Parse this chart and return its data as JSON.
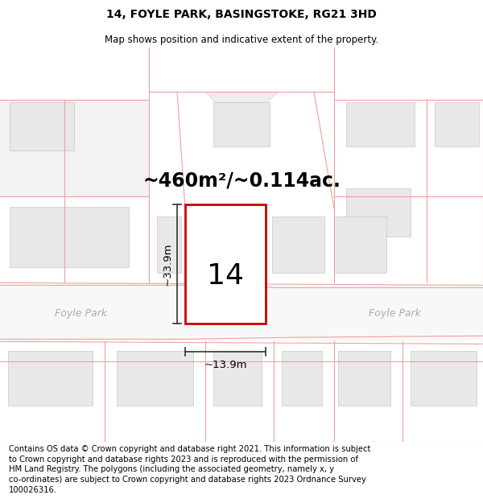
{
  "title": "14, FOYLE PARK, BASINGSTOKE, RG21 3HD",
  "subtitle": "Map shows position and indicative extent of the property.",
  "area_text": "~460m²/~0.114ac.",
  "number_label": "14",
  "dim_height": "~33.9m",
  "dim_width": "~13.9m",
  "street_label": "Foyle Park",
  "footer_text": "Contains OS data © Crown copyright and database right 2021. This information is subject to Crown copyright and database rights 2023 and is reproduced with the permission of HM Land Registry. The polygons (including the associated geometry, namely x, y co-ordinates) are subject to Crown copyright and database rights 2023 Ordnance Survey 100026316.",
  "bg_color": "#ffffff",
  "map_bg": "#ffffff",
  "plot_outline_color": "#cc0000",
  "building_fill": "#e8e8e8",
  "building_stroke": "#c8c8c8",
  "pink_line_color": "#f0a0a0",
  "road_color": "#f8f8f8",
  "title_fontsize": 10,
  "subtitle_fontsize": 8.5,
  "area_fontsize": 17,
  "number_fontsize": 26,
  "dim_fontsize": 9.5,
  "street_fontsize": 9,
  "footer_fontsize": 7.2
}
